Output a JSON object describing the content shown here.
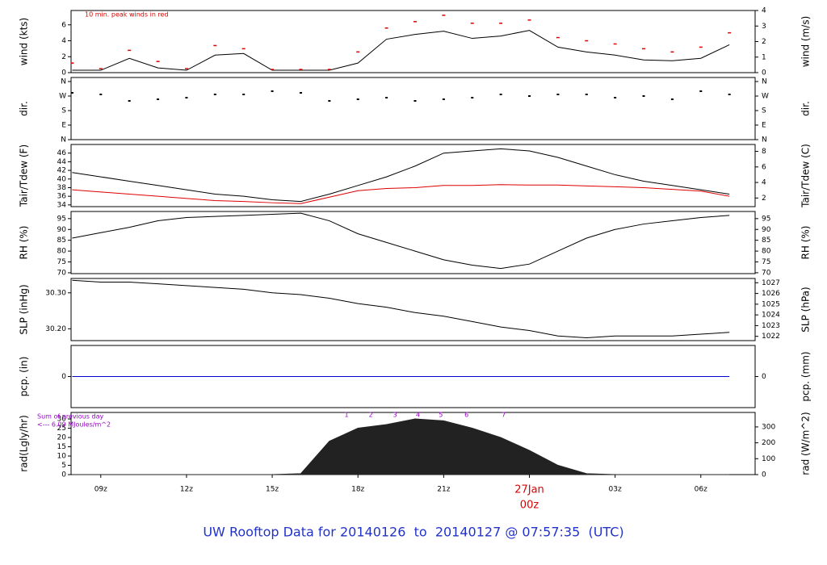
{
  "title": "UW Rooftop Data for 20140126  to  20140127 @ 07:57:35  (UTC)",
  "chart_data": [
    {
      "type": "line",
      "ylabel": "wind (kts)",
      "y2label": "wind (m/s)",
      "xlim": [
        7.96,
        31.9
      ],
      "x": [
        8,
        9,
        10,
        11,
        12,
        13,
        14,
        15,
        16,
        17,
        18,
        19,
        20,
        21,
        22,
        23,
        24,
        25,
        26,
        27,
        28,
        29,
        30,
        31
      ],
      "ylim": [
        0,
        7.8
      ],
      "yticks": [
        0,
        2,
        4,
        6
      ],
      "y2lim": [
        0,
        4
      ],
      "y2ticks": [
        0,
        1,
        2,
        3,
        4
      ],
      "notes": [
        "10 min. peak winds in red"
      ],
      "note_color": "#dd0000",
      "series": [
        {
          "color": "#000000",
          "values": [
            0.3,
            0.3,
            1.8,
            0.6,
            0.3,
            2.2,
            2.4,
            0.3,
            0.3,
            0.3,
            1.2,
            4.2,
            4.8,
            5.2,
            4.3,
            4.6,
            5.3,
            3.2,
            2.6,
            2.2,
            1.6,
            1.5,
            1.8,
            3.5
          ]
        },
        {
          "color": "#dd0000",
          "style": "dash",
          "values": [
            1.2,
            0.5,
            2.8,
            1.4,
            0.5,
            3.4,
            3.0,
            0.4,
            0.4,
            0.4,
            2.6,
            5.6,
            6.4,
            7.2,
            6.2,
            6.2,
            6.6,
            4.4,
            4.0,
            3.6,
            3.0,
            2.6,
            3.2,
            5.0
          ]
        }
      ]
    },
    {
      "type": "scatter",
      "ylabel": "dir.",
      "y2label": "dir.",
      "xlim": [
        7.96,
        31.9
      ],
      "x": [
        8,
        9,
        10,
        11,
        12,
        13,
        14,
        15,
        16,
        17,
        18,
        19,
        20,
        21,
        22,
        23,
        24,
        25,
        26,
        27,
        28,
        29,
        30,
        31
      ],
      "ylim": [
        0,
        385
      ],
      "yticks": [
        {
          "value": 0,
          "label": "N"
        },
        {
          "value": 90,
          "label": "E"
        },
        {
          "value": 180,
          "label": "S"
        },
        {
          "value": 270,
          "label": "W"
        },
        {
          "value": 360,
          "label": "N"
        }
      ],
      "y2lim": [
        0,
        385
      ],
      "y2ticks": [
        {
          "value": 0,
          "label": "N"
        },
        {
          "value": 90,
          "label": "E"
        },
        {
          "value": 180,
          "label": "S"
        },
        {
          "value": 270,
          "label": "W"
        },
        {
          "value": 360,
          "label": "N"
        }
      ],
      "series": [
        {
          "color": "#000000",
          "values": [
            290,
            280,
            240,
            250,
            260,
            280,
            280,
            300,
            290,
            240,
            250,
            260,
            240,
            250,
            260,
            280,
            270,
            280,
            280,
            260,
            270,
            250,
            300,
            280
          ]
        }
      ]
    },
    {
      "type": "line",
      "ylabel": "Tair/Tdew (F)",
      "y2label": "Tair/Tdew (C)",
      "xlim": [
        7.96,
        31.9
      ],
      "x": [
        8,
        9,
        10,
        11,
        12,
        13,
        14,
        15,
        16,
        17,
        18,
        19,
        20,
        21,
        22,
        23,
        24,
        25,
        26,
        27,
        28,
        29,
        30,
        31
      ],
      "ylim": [
        33.6,
        48
      ],
      "yticks": [
        34,
        36,
        38,
        40,
        42,
        44,
        46
      ],
      "y2lim": [
        0.89,
        8.89
      ],
      "y2ticks": [
        2,
        4,
        6,
        8
      ],
      "series": [
        {
          "color": "#000000",
          "values": [
            41.5,
            40.5,
            39.5,
            38.5,
            37.5,
            36.5,
            36,
            35.2,
            34.8,
            36.5,
            38.5,
            40.5,
            43,
            46,
            46.5,
            47,
            46.5,
            45,
            43,
            41,
            39.5,
            38.5,
            37.5,
            36.5
          ]
        },
        {
          "color": "#dd0000",
          "values": [
            37.5,
            37,
            36.5,
            36,
            35.5,
            35,
            34.8,
            34.5,
            34.3,
            35.8,
            37.3,
            37.8,
            38,
            38.5,
            38.5,
            38.7,
            38.6,
            38.6,
            38.4,
            38.2,
            38,
            37.6,
            37.2,
            36
          ]
        }
      ]
    },
    {
      "type": "line",
      "ylabel": "RH (%)",
      "y2label": "RH (%)",
      "xlim": [
        7.96,
        31.9
      ],
      "x": [
        8,
        9,
        10,
        11,
        12,
        13,
        14,
        15,
        16,
        17,
        18,
        19,
        20,
        21,
        22,
        23,
        24,
        25,
        26,
        27,
        28,
        29,
        30,
        31
      ],
      "ylim": [
        69.6,
        98.3
      ],
      "yticks": [
        70,
        75,
        80,
        85,
        90,
        95
      ],
      "y2lim": [
        69.6,
        98.3
      ],
      "y2ticks": [
        70,
        75,
        80,
        85,
        90,
        95
      ],
      "series": [
        {
          "color": "#000000",
          "values": [
            86,
            88.5,
            91,
            94,
            95.5,
            96,
            96.5,
            97,
            97.5,
            94,
            88,
            84,
            80,
            76,
            73.5,
            72,
            74,
            80,
            86,
            90,
            92.5,
            94,
            95.5,
            96.5
          ]
        }
      ]
    },
    {
      "type": "line",
      "ylabel": "SLP (inHg)",
      "y2label": "SLP (hPa)",
      "xlim": [
        7.96,
        31.9
      ],
      "x": [
        8,
        9,
        10,
        11,
        12,
        13,
        14,
        15,
        16,
        17,
        18,
        19,
        20,
        21,
        22,
        23,
        24,
        25,
        26,
        27,
        28,
        29,
        30,
        31
      ],
      "ylim": [
        30.167,
        30.34
      ],
      "yticks": [
        {
          "value": 30.2,
          "label": "30.20"
        },
        {
          "value": 30.3,
          "label": "30.30"
        }
      ],
      "y2lim": [
        1021.6,
        1027.4
      ],
      "y2ticks": [
        1022,
        1023,
        1024,
        1025,
        1026,
        1027
      ],
      "series": [
        {
          "color": "#000000",
          "values": [
            30.335,
            30.33,
            30.33,
            30.325,
            30.32,
            30.315,
            30.31,
            30.3,
            30.295,
            30.285,
            30.27,
            30.26,
            30.245,
            30.235,
            30.22,
            30.205,
            30.195,
            30.18,
            30.175,
            30.18,
            30.18,
            30.18,
            30.185,
            30.19
          ]
        }
      ]
    },
    {
      "type": "line",
      "ylabel": "pcp. (in)",
      "y2label": "pcp. (mm)",
      "xlim": [
        7.96,
        31.9
      ],
      "x": [
        8,
        9,
        10,
        11,
        12,
        13,
        14,
        15,
        16,
        17,
        18,
        19,
        20,
        21,
        22,
        23,
        24,
        25,
        26,
        27,
        28,
        29,
        30,
        31
      ],
      "ylim": [
        -0.1,
        0.1
      ],
      "yticks": [
        0
      ],
      "y2lim": [
        -2.54,
        2.54
      ],
      "y2ticks": [
        0
      ],
      "series": [
        {
          "color": "#0000cc",
          "values": [
            0,
            0,
            0,
            0,
            0,
            0,
            0,
            0,
            0,
            0,
            0,
            0,
            0,
            0,
            0,
            0,
            0,
            0,
            0,
            0,
            0,
            0,
            0,
            0
          ]
        }
      ]
    },
    {
      "type": "area",
      "ylabel": "rad(Lgly/hr)",
      "y2label": "rad (W/m^2)",
      "xlim": [
        7.96,
        31.9
      ],
      "x": [
        8,
        9,
        10,
        11,
        12,
        13,
        14,
        15,
        16,
        17,
        18,
        19,
        20,
        21,
        22,
        23,
        24,
        25,
        26,
        27,
        28,
        29,
        30,
        31
      ],
      "ylim": [
        0,
        33.5
      ],
      "yticks": [
        0,
        5,
        10,
        15,
        20,
        25,
        30
      ],
      "y2lim": [
        0,
        391
      ],
      "y2ticks": [
        0,
        100,
        200,
        300
      ],
      "notes": [
        "Sum of previous day",
        "<--- 6.09 MJoules/m^2"
      ],
      "note_color": "#9900cc",
      "hour_marks": [
        {
          "x": 17.6,
          "label": "1"
        },
        {
          "x": 18.45,
          "label": "2"
        },
        {
          "x": 19.3,
          "label": "3"
        },
        {
          "x": 20.1,
          "label": "4"
        },
        {
          "x": 20.9,
          "label": "5"
        },
        {
          "x": 21.8,
          "label": "6"
        },
        {
          "x": 23.1,
          "label": "7"
        }
      ],
      "xticks": [
        {
          "value": 9,
          "label": "09z"
        },
        {
          "value": 12,
          "label": "12z"
        },
        {
          "value": 15,
          "label": "15z"
        },
        {
          "value": 18,
          "label": "18z"
        },
        {
          "value": 21,
          "label": "21z"
        },
        {
          "value": 27,
          "label": "03z"
        },
        {
          "value": 30,
          "label": "06z"
        }
      ],
      "date_marker": {
        "value": 24,
        "label": "27Jan",
        "time": "00z",
        "color": "#dd0000"
      },
      "series": [
        {
          "color": "#222222",
          "values": [
            0,
            0,
            0,
            0,
            0,
            0,
            0,
            0,
            0.5,
            18,
            25,
            27,
            30,
            29,
            25,
            20,
            13,
            5,
            0.5,
            0,
            0,
            0,
            0,
            0
          ]
        }
      ]
    }
  ]
}
